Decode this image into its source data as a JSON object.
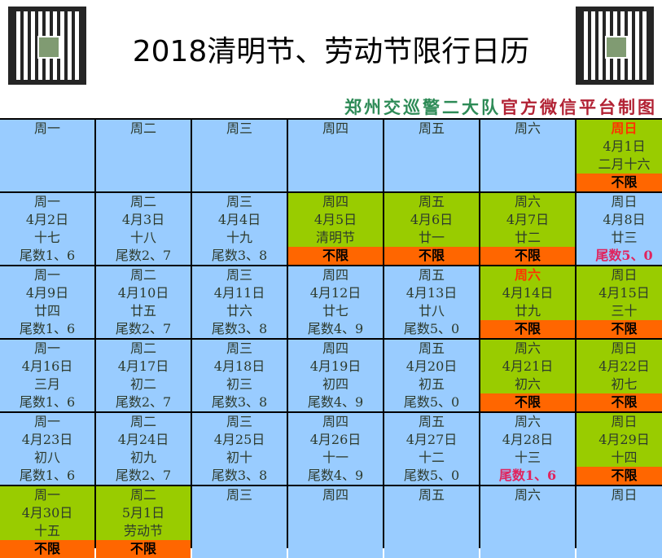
{
  "title": "2018清明节、劳动节限行日历",
  "subtitle": {
    "part1": "郑州交巡警二大队",
    "part2": "官方微信平台制图"
  },
  "colors": {
    "blue": "#99ccff",
    "green": "#99cc00",
    "orange": "#ff6600"
  },
  "weeks": [
    [
      {
        "weekday": "周一"
      },
      {
        "weekday": "周二"
      },
      {
        "weekday": "周三"
      },
      {
        "weekday": "周四"
      },
      {
        "weekday": "周五"
      },
      {
        "weekday": "周六"
      },
      {
        "weekday": "周日",
        "date": "4月1日",
        "lunar": "二月十六",
        "rule": "不限",
        "bg": "green",
        "rule_style": "bar",
        "weekday_red": true
      }
    ],
    [
      {
        "weekday": "周一",
        "date": "4月2日",
        "lunar": "十七",
        "rule": "尾数1、6"
      },
      {
        "weekday": "周二",
        "date": "4月3日",
        "lunar": "十八",
        "rule": "尾数2、7"
      },
      {
        "weekday": "周三",
        "date": "4月4日",
        "lunar": "十九",
        "rule": "尾数3、8"
      },
      {
        "weekday": "周四",
        "date": "4月5日",
        "lunar": "清明节",
        "rule": "不限",
        "bg": "green",
        "rule_style": "bar"
      },
      {
        "weekday": "周五",
        "date": "4月6日",
        "lunar": "廿一",
        "rule": "不限",
        "bg": "green",
        "rule_style": "bar"
      },
      {
        "weekday": "周六",
        "date": "4月7日",
        "lunar": "廿二",
        "rule": "不限",
        "bg": "green",
        "rule_style": "bar"
      },
      {
        "weekday": "周日",
        "date": "4月8日",
        "lunar": "廿三",
        "rule": "尾数5、0",
        "rule_style": "red"
      }
    ],
    [
      {
        "weekday": "周一",
        "date": "4月9日",
        "lunar": "廿四",
        "rule": "尾数1、6"
      },
      {
        "weekday": "周二",
        "date": "4月10日",
        "lunar": "廿五",
        "rule": "尾数2、7"
      },
      {
        "weekday": "周三",
        "date": "4月11日",
        "lunar": "廿六",
        "rule": "尾数3、8"
      },
      {
        "weekday": "周四",
        "date": "4月12日",
        "lunar": "廿七",
        "rule": "尾数4、9"
      },
      {
        "weekday": "周五",
        "date": "4月13日",
        "lunar": "廿八",
        "rule": "尾数5、0"
      },
      {
        "weekday": "周六",
        "date": "4月14日",
        "lunar": "廿九",
        "rule": "不限",
        "bg": "green",
        "rule_style": "bar",
        "weekday_red": true
      },
      {
        "weekday": "周日",
        "date": "4月15日",
        "lunar": "三十",
        "rule": "不限",
        "bg": "green",
        "rule_style": "bar"
      }
    ],
    [
      {
        "weekday": "周一",
        "date": "4月16日",
        "lunar": "三月",
        "rule": "尾数1、6"
      },
      {
        "weekday": "周二",
        "date": "4月17日",
        "lunar": "初二",
        "rule": "尾数2、7"
      },
      {
        "weekday": "周三",
        "date": "4月18日",
        "lunar": "初三",
        "rule": "尾数3、8"
      },
      {
        "weekday": "周四",
        "date": "4月19日",
        "lunar": "初四",
        "rule": "尾数4、9"
      },
      {
        "weekday": "周五",
        "date": "4月20日",
        "lunar": "初五",
        "rule": "尾数5、0"
      },
      {
        "weekday": "周六",
        "date": "4月21日",
        "lunar": "初六",
        "rule": "不限",
        "bg": "green",
        "rule_style": "bar"
      },
      {
        "weekday": "周日",
        "date": "4月22日",
        "lunar": "初七",
        "rule": "不限",
        "bg": "green",
        "rule_style": "bar"
      }
    ],
    [
      {
        "weekday": "周一",
        "date": "4月23日",
        "lunar": "初八",
        "rule": "尾数1、6"
      },
      {
        "weekday": "周二",
        "date": "4月24日",
        "lunar": "初九",
        "rule": "尾数2、7"
      },
      {
        "weekday": "周三",
        "date": "4月25日",
        "lunar": "初十",
        "rule": "尾数3、8"
      },
      {
        "weekday": "周四",
        "date": "4月26日",
        "lunar": "十一",
        "rule": "尾数4、9"
      },
      {
        "weekday": "周五",
        "date": "4月27日",
        "lunar": "十二",
        "rule": "尾数5、0"
      },
      {
        "weekday": "周六",
        "date": "4月28日",
        "lunar": "十三",
        "rule": "尾数1、6",
        "rule_style": "red"
      },
      {
        "weekday": "周日",
        "date": "4月29日",
        "lunar": "十四",
        "rule": "不限",
        "bg": "green",
        "rule_style": "bar"
      }
    ],
    [
      {
        "weekday": "周一",
        "date": "4月30日",
        "lunar": "十五",
        "rule": "不限",
        "bg": "green",
        "rule_style": "bar"
      },
      {
        "weekday": "周二",
        "date": "5月1日",
        "lunar": "劳动节",
        "rule": "不限",
        "bg": "green",
        "rule_style": "bar"
      },
      {
        "weekday": "周三"
      },
      {
        "weekday": "周四"
      },
      {
        "weekday": "周五"
      },
      {
        "weekday": "周六"
      },
      {
        "weekday": "周日"
      }
    ]
  ]
}
